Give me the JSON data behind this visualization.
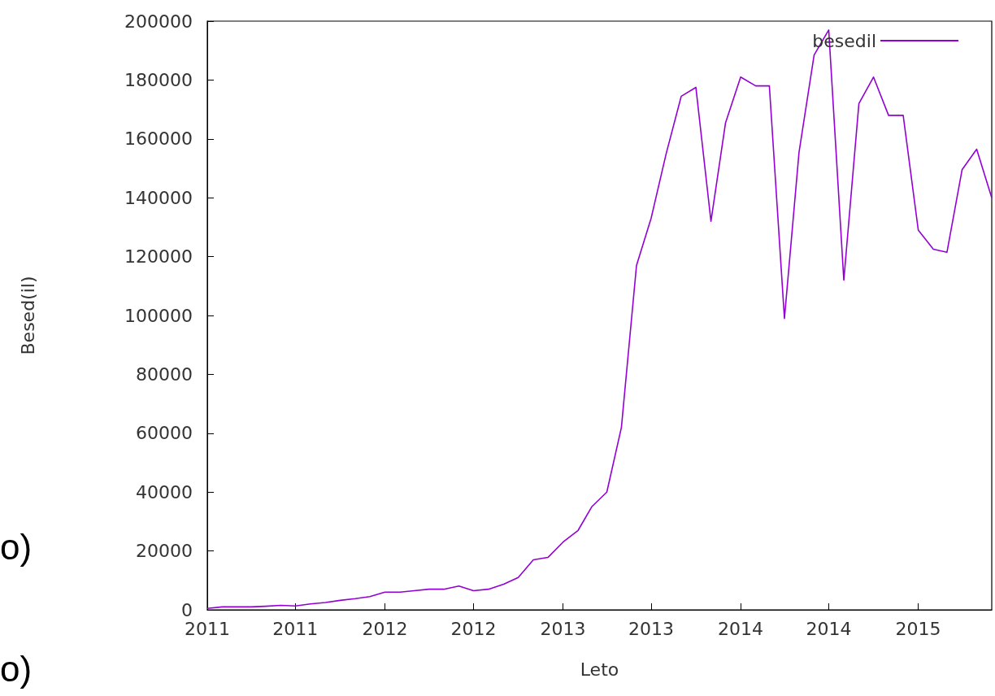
{
  "chart_data": {
    "type": "line",
    "xlabel": "Leto",
    "ylabel": "Besed(il)",
    "x": [
      "2011-01",
      "2011-02",
      "2011-03",
      "2011-04",
      "2011-05",
      "2011-06",
      "2011-07",
      "2011-08",
      "2011-09",
      "2011-10",
      "2011-11",
      "2011-12",
      "2012-01",
      "2012-02",
      "2012-03",
      "2012-04",
      "2012-05",
      "2012-06",
      "2012-07",
      "2012-08",
      "2012-09",
      "2012-10",
      "2012-11",
      "2012-12",
      "2013-01",
      "2013-02",
      "2013-03",
      "2013-04",
      "2013-05",
      "2013-06",
      "2013-07",
      "2013-08",
      "2013-09",
      "2013-10",
      "2013-11",
      "2013-12",
      "2014-01",
      "2014-02",
      "2014-03",
      "2014-04",
      "2014-05",
      "2014-06",
      "2014-07",
      "2014-08",
      "2014-09",
      "2014-10",
      "2014-11",
      "2014-12",
      "2015-01",
      "2015-02",
      "2015-03",
      "2015-04",
      "2015-05",
      "2015-06"
    ],
    "series": [
      {
        "name": "besedil",
        "color": "#9400d3",
        "values": [
          500,
          1000,
          1000,
          1000,
          1200,
          1500,
          1300,
          2000,
          2500,
          3200,
          3800,
          4500,
          6000,
          6000,
          6500,
          7000,
          7000,
          8100,
          6500,
          7000,
          8700,
          11000,
          17000,
          17800,
          23000,
          27000,
          35000,
          40000,
          62000,
          117000,
          133000,
          155000,
          174500,
          177500,
          132000,
          165500,
          181000,
          178000,
          178000,
          99000,
          155500,
          188500,
          197000,
          112000,
          172000,
          181000,
          168000,
          168000,
          129000,
          122500,
          121500,
          149500,
          156500,
          140000
        ]
      }
    ],
    "xlim": [
      "2011-01",
      "2015-06"
    ],
    "xticks": [
      {
        "value": "2011-01",
        "label": "2011"
      },
      {
        "value": "2011-07",
        "label": "2011"
      },
      {
        "value": "2012-01",
        "label": "2012"
      },
      {
        "value": "2012-07",
        "label": "2012"
      },
      {
        "value": "2013-01",
        "label": "2013"
      },
      {
        "value": "2013-07",
        "label": "2013"
      },
      {
        "value": "2014-01",
        "label": "2014"
      },
      {
        "value": "2014-07",
        "label": "2014"
      },
      {
        "value": "2015-01",
        "label": "2015"
      }
    ],
    "ylim": [
      0,
      200000
    ],
    "yticks": [
      0,
      20000,
      40000,
      60000,
      80000,
      100000,
      120000,
      140000,
      160000,
      180000,
      200000
    ],
    "legend": "top right",
    "grid": false,
    "marker": "none",
    "line_style": "solid",
    "annotations": [
      "o)",
      "o)"
    ]
  }
}
